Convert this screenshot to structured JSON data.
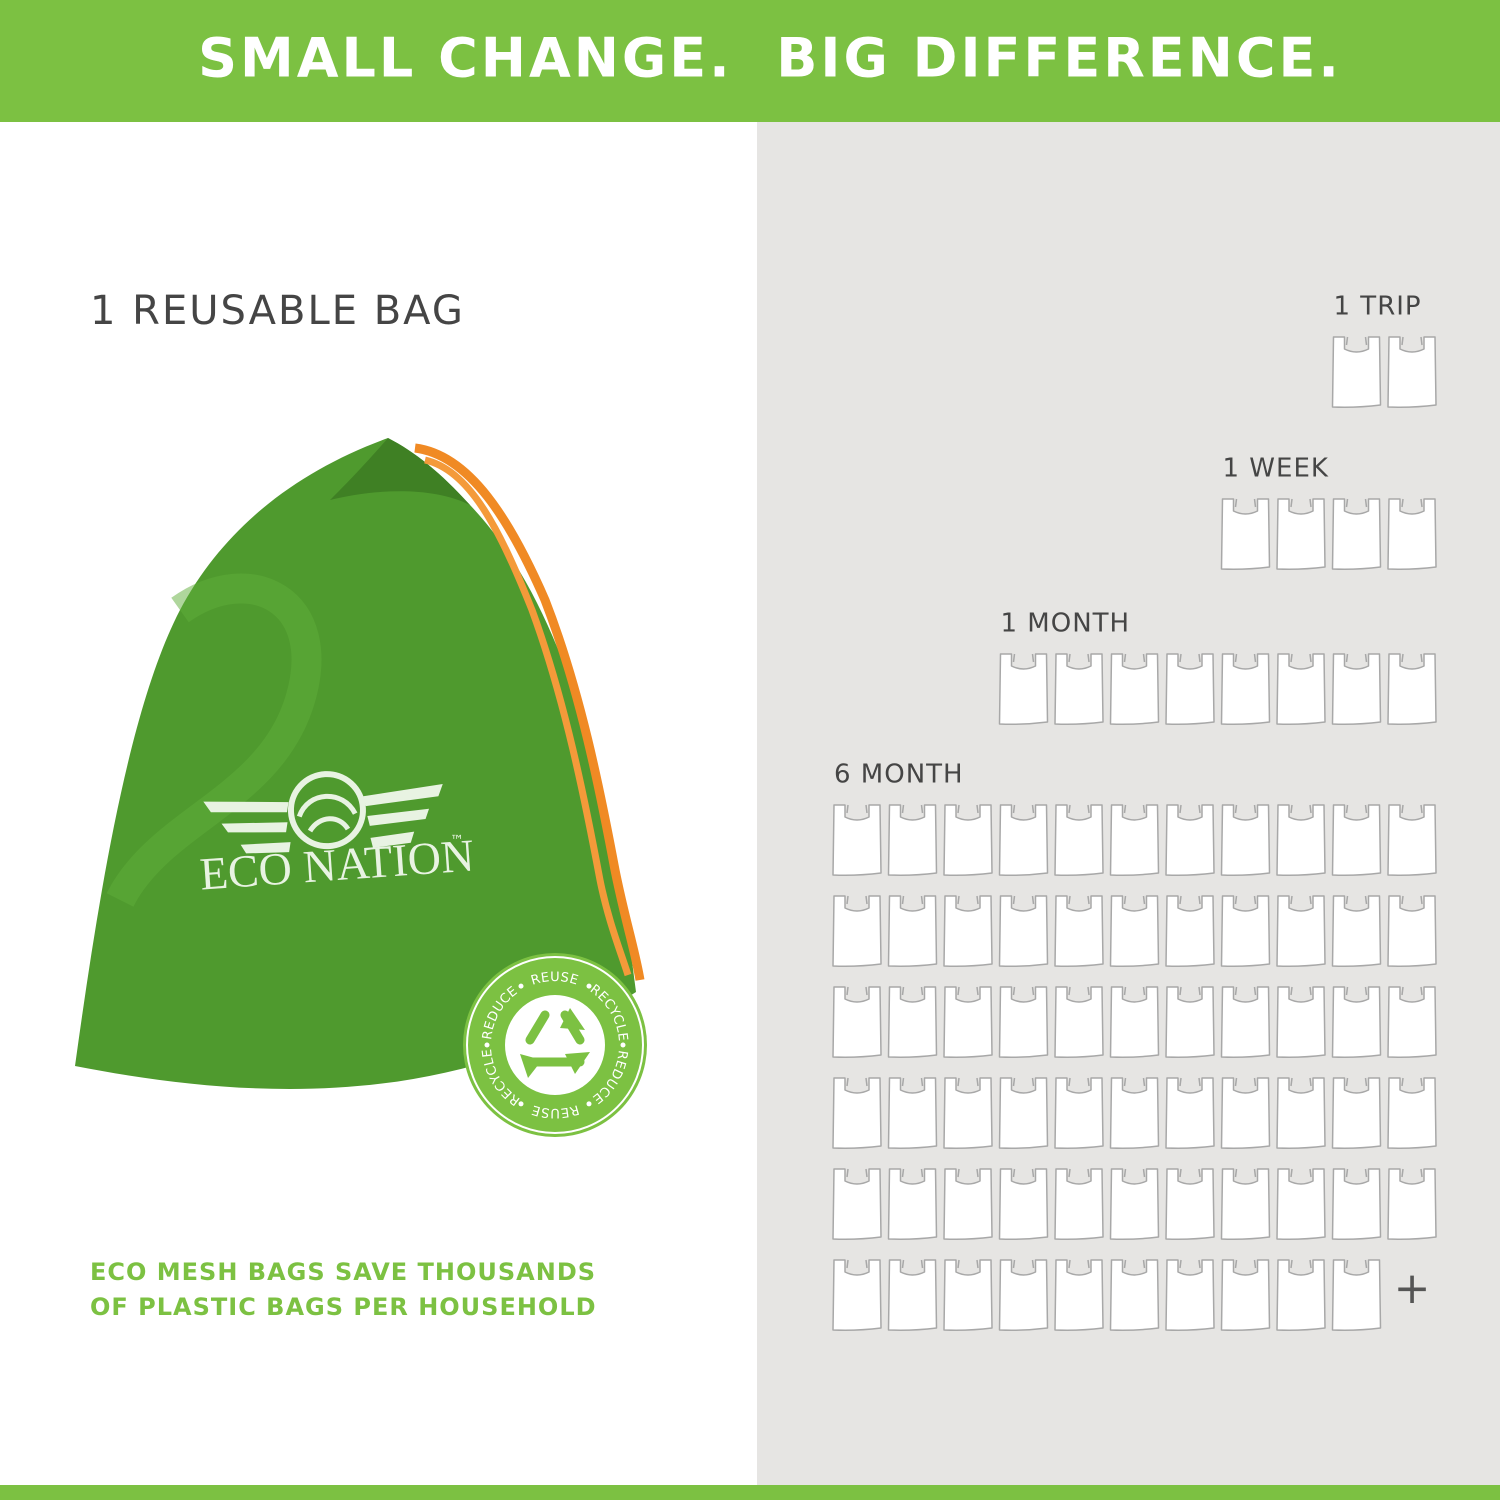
{
  "header": {
    "title": "SMALL CHANGE.  BIG DIFFERENCE."
  },
  "left": {
    "heading": "1 REUSABLE BAG",
    "tagline": [
      "ECO MESH BAGS SAVE THOUSANDS",
      "OF PLASTIC BAGS PER HOUSEHOLD"
    ]
  },
  "logo": {
    "brand": "ECO NATION",
    "tm": "™"
  },
  "badge": {
    "words": [
      "REUSE",
      "RECYCLE",
      "REDUCE",
      "REUSE",
      "RECYCLE",
      "REDUCE"
    ]
  },
  "groups": [
    {
      "label": "1 TRIP",
      "count": 2
    },
    {
      "label": "1 WEEK",
      "count": 4
    },
    {
      "label": "1 MONTH",
      "count": 8
    },
    {
      "label": "6 MONTH",
      "count": 65,
      "more": "+"
    }
  ]
}
